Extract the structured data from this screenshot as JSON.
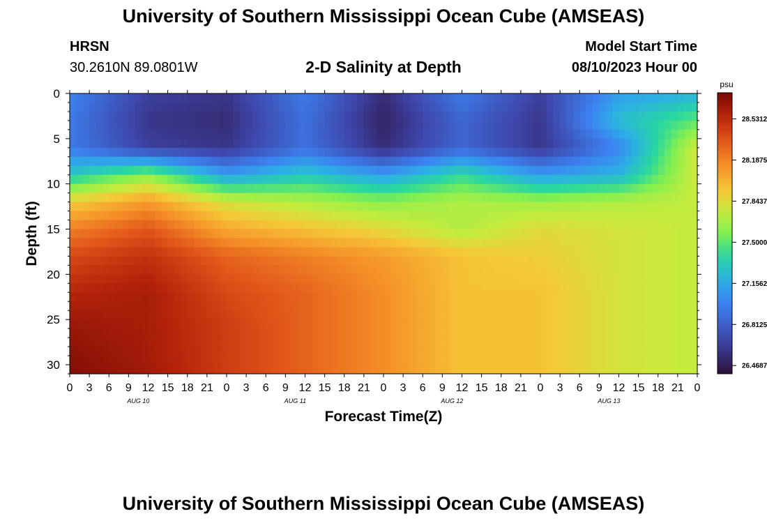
{
  "header": {
    "title": "University of Southern Mississippi Ocean Cube (AMSEAS)",
    "station": "HRSN",
    "coords": "30.2610N  89.0801W",
    "subtitle": "2-D Salinity at Depth",
    "model_label": "Model Start Time",
    "model_time": "08/10/2023 Hour 00"
  },
  "footer": {
    "title": "University of Southern Mississippi Ocean Cube (AMSEAS)"
  },
  "chart_data": {
    "type": "heatmap",
    "title": "2-D Salinity at Depth",
    "xlabel": "Forecast Time(Z)",
    "ylabel": "Depth (ft)",
    "x_unit": "hours from 08/10/2023 00Z",
    "xlim": [
      0,
      96
    ],
    "ylim": [
      31,
      0
    ],
    "x_tick_labels": [
      "0",
      "3",
      "6",
      "9",
      "12",
      "15",
      "18",
      "21",
      "0",
      "3",
      "6",
      "9",
      "12",
      "15",
      "18",
      "21",
      "0",
      "3",
      "6",
      "9",
      "12",
      "15",
      "18",
      "21",
      "0",
      "3",
      "6",
      "9",
      "12",
      "15",
      "18",
      "21",
      "0"
    ],
    "date_labels": [
      "AUG 10",
      "AUG 11",
      "AUG 12",
      "AUG 13"
    ],
    "y_ticks": [
      0,
      5,
      10,
      15,
      20,
      25,
      30
    ],
    "colorbar": {
      "unit": "psu",
      "ticks": [
        "28.5312",
        "28.1875",
        "27.8437",
        "27.5000",
        "27.1562",
        "26.8125",
        "26.4687"
      ],
      "min": 26.4,
      "max": 28.75
    },
    "x_hours": [
      0,
      12,
      24,
      36,
      48,
      60,
      72,
      84,
      96
    ],
    "depth_ft": [
      0,
      3,
      6,
      9,
      12,
      15,
      18,
      22,
      26,
      31
    ],
    "salinity_psu": [
      [
        27.0,
        26.65,
        26.6,
        26.95,
        26.55,
        26.95,
        26.65,
        27.1,
        27.2
      ],
      [
        26.95,
        26.6,
        26.55,
        26.9,
        26.5,
        26.85,
        26.6,
        27.25,
        27.5
      ],
      [
        26.95,
        26.65,
        26.6,
        26.9,
        26.55,
        26.85,
        26.6,
        27.0,
        27.8
      ],
      [
        27.3,
        27.6,
        27.1,
        27.3,
        27.1,
        27.4,
        27.1,
        27.2,
        27.8
      ],
      [
        27.9,
        28.1,
        27.8,
        27.7,
        27.6,
        27.7,
        27.65,
        27.7,
        27.75
      ],
      [
        28.2,
        28.35,
        28.05,
        27.95,
        27.85,
        27.7,
        27.85,
        27.8,
        27.75
      ],
      [
        28.4,
        28.5,
        28.3,
        28.2,
        28.1,
        27.95,
        27.9,
        27.8,
        27.75
      ],
      [
        28.55,
        28.6,
        28.4,
        28.3,
        28.15,
        27.95,
        27.95,
        27.8,
        27.75
      ],
      [
        28.65,
        28.6,
        28.45,
        28.3,
        28.15,
        27.95,
        27.95,
        27.8,
        27.75
      ],
      [
        28.72,
        28.62,
        28.45,
        28.3,
        28.15,
        27.95,
        27.95,
        27.8,
        27.75
      ]
    ]
  }
}
